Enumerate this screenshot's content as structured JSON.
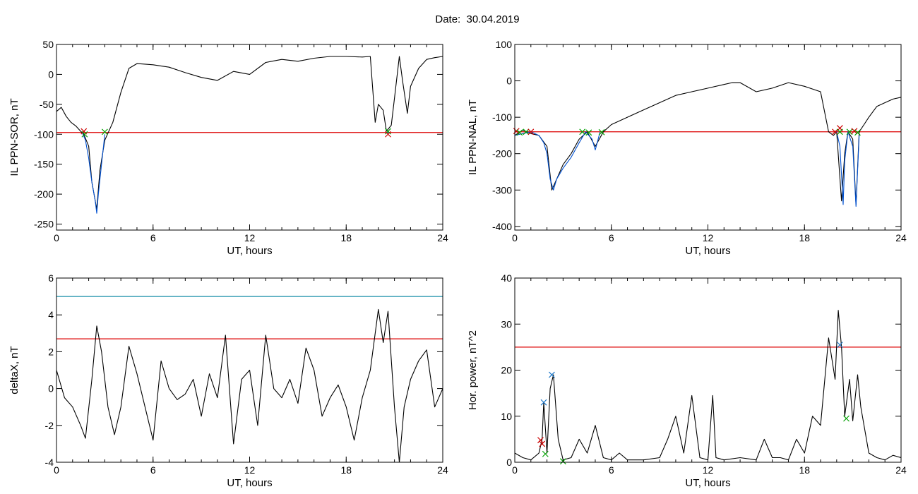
{
  "page": {
    "title": "Date:  30.04.2019"
  },
  "colors": {
    "trace": "#000000",
    "highlight": "#0050d0",
    "threshold_red": "#dd0000",
    "threshold_cyan": "#1a8fa8",
    "marker_red": "#cc0000",
    "marker_green": "#00a000",
    "marker_blue": "#1f78c8"
  },
  "chart_data": [
    {
      "type": "line",
      "xlabel": "UT, hours",
      "ylabel": "IL PPN-SOR, nT",
      "xlim": [
        0,
        24
      ],
      "ylim": [
        -260,
        50
      ],
      "xticks": [
        0,
        6,
        12,
        18,
        24
      ],
      "yticks": [
        50,
        0,
        -50,
        -100,
        -150,
        -200,
        -250
      ],
      "thresholds": [
        {
          "value": -97,
          "color": "red"
        }
      ],
      "series": [
        {
          "color": "black",
          "x": [
            0,
            0.3,
            0.6,
            0.9,
            1.2,
            1.5,
            1.7,
            2.0,
            2.2,
            2.5,
            2.7,
            3.0,
            3.5,
            4.0,
            4.5,
            5.0,
            6.0,
            7.0,
            8.0,
            9.0,
            10.0,
            11.0,
            12.0,
            13.0,
            14.0,
            15.0,
            16.0,
            17.0,
            18.0,
            19.0,
            19.5,
            19.8,
            20.0,
            20.3,
            20.5,
            20.8,
            21.0,
            21.3,
            21.5,
            21.8,
            22.0,
            22.5,
            23.0,
            23.5,
            24
          ],
          "y": [
            -62,
            -55,
            -70,
            -80,
            -86,
            -95,
            -100,
            -120,
            -180,
            -225,
            -160,
            -110,
            -80,
            -30,
            10,
            18,
            16,
            12,
            3,
            -5,
            -10,
            5,
            0,
            20,
            25,
            22,
            27,
            30,
            30,
            29,
            30,
            -80,
            -50,
            -60,
            -95,
            -85,
            -40,
            30,
            -10,
            -65,
            -20,
            10,
            25,
            28,
            30
          ]
        },
        {
          "color": "blue",
          "x": [
            1.6,
            1.8,
            2.0,
            2.2,
            2.4,
            2.5,
            2.6,
            2.8,
            3.0
          ],
          "y": [
            -97,
            -110,
            -140,
            -180,
            -210,
            -232,
            -200,
            -150,
            -100
          ]
        },
        {
          "color": "blue",
          "x": [
            20.5,
            20.7
          ],
          "y": [
            -97,
            -97
          ]
        }
      ],
      "markers": [
        {
          "x": 1.7,
          "y": -95,
          "color": "red"
        },
        {
          "x": 1.75,
          "y": -100,
          "color": "green"
        },
        {
          "x": 3.0,
          "y": -96,
          "color": "green"
        },
        {
          "x": 20.6,
          "y": -95,
          "color": "green"
        },
        {
          "x": 20.6,
          "y": -100,
          "color": "red"
        }
      ]
    },
    {
      "type": "line",
      "xlabel": "UT, hours",
      "ylabel": "IL PPN-NAL, nT",
      "xlim": [
        0,
        24
      ],
      "ylim": [
        -410,
        100
      ],
      "xticks": [
        0,
        6,
        12,
        18,
        24
      ],
      "yticks": [
        100,
        0,
        -100,
        -200,
        -300,
        -400
      ],
      "thresholds": [
        {
          "value": -140,
          "color": "red"
        }
      ],
      "series": [
        {
          "color": "black",
          "x": [
            0,
            0.5,
            1.0,
            1.5,
            2.0,
            2.3,
            2.6,
            3.0,
            3.5,
            4.0,
            4.5,
            5.0,
            5.5,
            6.0,
            7.0,
            8.0,
            9.0,
            10.0,
            11.0,
            12.0,
            13.0,
            13.5,
            14.0,
            15.0,
            16.0,
            17.0,
            18.0,
            19.0,
            19.5,
            19.8,
            20.0,
            20.3,
            20.5,
            20.7,
            21.0,
            21.2,
            21.4,
            21.7,
            22.0,
            22.5,
            23.0,
            23.5,
            24
          ],
          "y": [
            -150,
            -135,
            -145,
            -150,
            -180,
            -300,
            -270,
            -230,
            -200,
            -160,
            -140,
            -180,
            -140,
            -120,
            -100,
            -80,
            -60,
            -40,
            -30,
            -20,
            -10,
            -5,
            -5,
            -30,
            -20,
            -5,
            -15,
            -30,
            -140,
            -150,
            -140,
            -330,
            -200,
            -140,
            -160,
            -340,
            -140,
            -120,
            -100,
            -70,
            -60,
            -50,
            -45
          ]
        },
        {
          "color": "blue",
          "x": [
            0,
            0.5,
            1.0,
            1.5,
            1.8,
            2.0,
            2.2,
            2.4,
            2.6,
            3.0,
            3.5,
            4.0,
            4.4,
            4.8,
            5.0,
            5.3
          ],
          "y": [
            -150,
            -145,
            -140,
            -150,
            -170,
            -200,
            -270,
            -300,
            -270,
            -240,
            -210,
            -170,
            -140,
            -160,
            -190,
            -140
          ]
        },
        {
          "color": "blue",
          "x": [
            20.0,
            20.2,
            20.4,
            20.5,
            20.7,
            21.0,
            21.2,
            21.4
          ],
          "y": [
            -140,
            -180,
            -340,
            -220,
            -140,
            -180,
            -345,
            -150
          ]
        }
      ],
      "markers": [
        {
          "x": 0.1,
          "y": -138,
          "color": "red"
        },
        {
          "x": 0.3,
          "y": -142,
          "color": "green"
        },
        {
          "x": 0.7,
          "y": -140,
          "color": "green"
        },
        {
          "x": 1.0,
          "y": -140,
          "color": "red"
        },
        {
          "x": 4.2,
          "y": -140,
          "color": "green"
        },
        {
          "x": 4.6,
          "y": -142,
          "color": "green"
        },
        {
          "x": 5.4,
          "y": -141,
          "color": "green"
        },
        {
          "x": 19.9,
          "y": -140,
          "color": "red"
        },
        {
          "x": 20.2,
          "y": -130,
          "color": "red"
        },
        {
          "x": 20.2,
          "y": -140,
          "color": "green"
        },
        {
          "x": 20.8,
          "y": -140,
          "color": "green"
        },
        {
          "x": 21.1,
          "y": -138,
          "color": "red"
        },
        {
          "x": 21.3,
          "y": -142,
          "color": "green"
        }
      ]
    },
    {
      "type": "line",
      "xlabel": "UT, hours",
      "ylabel": "deltaX, nT",
      "xlim": [
        0,
        24
      ],
      "ylim": [
        -4,
        6
      ],
      "xticks": [
        0,
        6,
        12,
        18,
        24
      ],
      "yticks": [
        6,
        4,
        2,
        0,
        -2,
        -4
      ],
      "thresholds": [
        {
          "value": 5.0,
          "color": "cyan"
        },
        {
          "value": 2.7,
          "color": "red"
        }
      ],
      "series": [
        {
          "color": "black",
          "x": [
            0,
            0.5,
            1.0,
            1.5,
            1.8,
            2.2,
            2.5,
            2.8,
            3.2,
            3.6,
            4.0,
            4.5,
            5.0,
            5.5,
            6.0,
            6.5,
            7.0,
            7.5,
            8.0,
            8.5,
            9.0,
            9.5,
            10.0,
            10.5,
            11.0,
            11.5,
            12.0,
            12.5,
            13.0,
            13.5,
            14.0,
            14.5,
            15.0,
            15.5,
            16.0,
            16.5,
            17.0,
            17.5,
            18.0,
            18.5,
            19.0,
            19.5,
            20.0,
            20.3,
            20.6,
            21.0,
            21.3,
            21.6,
            22.0,
            22.5,
            23.0,
            23.5,
            24
          ],
          "y": [
            1.0,
            -0.5,
            -1.0,
            -2.0,
            -2.7,
            0.5,
            3.4,
            2.0,
            -1.0,
            -2.5,
            -1.0,
            2.3,
            0.8,
            -1.0,
            -2.8,
            1.5,
            0.0,
            -0.6,
            -0.3,
            0.5,
            -1.5,
            0.8,
            -0.5,
            2.9,
            -3.0,
            0.5,
            1.0,
            -2.0,
            2.9,
            0.0,
            -0.5,
            0.5,
            -0.8,
            2.2,
            1.0,
            -1.5,
            -0.5,
            0.2,
            -1.0,
            -2.8,
            -0.5,
            1.0,
            4.3,
            2.5,
            4.2,
            -1.0,
            -4.0,
            -1.0,
            0.5,
            1.5,
            2.1,
            -1.0,
            0.0
          ]
        }
      ],
      "markers": []
    },
    {
      "type": "line",
      "xlabel": "UT, hours",
      "ylabel": "Hor. power, nT^2",
      "xlim": [
        0,
        24
      ],
      "ylim": [
        0,
        40
      ],
      "xticks": [
        0,
        6,
        12,
        18,
        24
      ],
      "yticks": [
        40,
        30,
        20,
        10,
        0
      ],
      "thresholds": [
        {
          "value": 25,
          "color": "red"
        }
      ],
      "series": [
        {
          "color": "black",
          "x": [
            0,
            0.5,
            1.0,
            1.5,
            1.7,
            1.8,
            2.0,
            2.2,
            2.4,
            2.7,
            3.0,
            3.5,
            4.0,
            4.5,
            5.0,
            5.5,
            6.0,
            6.5,
            7.0,
            8.0,
            9.0,
            9.5,
            10.0,
            10.5,
            11.0,
            11.5,
            12.0,
            12.3,
            12.5,
            13.0,
            14.0,
            15.0,
            15.5,
            16.0,
            16.5,
            17.0,
            17.5,
            18.0,
            18.5,
            19.0,
            19.5,
            19.9,
            20.1,
            20.3,
            20.5,
            20.8,
            21.0,
            21.3,
            21.5,
            22.0,
            22.5,
            23.0,
            23.5,
            24
          ],
          "y": [
            2.0,
            1.0,
            0.5,
            2.0,
            5.0,
            13.0,
            2.0,
            16.0,
            19.0,
            5.0,
            0.5,
            1.0,
            5.0,
            2.0,
            8.0,
            1.0,
            0.5,
            2.0,
            0.5,
            0.5,
            1.0,
            5.0,
            10.0,
            2.0,
            14.5,
            1.0,
            0.5,
            14.5,
            1.0,
            0.5,
            1.0,
            0.5,
            5.0,
            1.0,
            1.0,
            0.5,
            5.0,
            2.0,
            10.0,
            8.0,
            27.0,
            18.0,
            33.0,
            25.0,
            10.0,
            18.0,
            9.0,
            19.0,
            12.0,
            2.0,
            1.0,
            0.5,
            1.5,
            1.0
          ]
        }
      ],
      "markers": [
        {
          "x": 1.6,
          "y": 4.8,
          "color": "red"
        },
        {
          "x": 1.7,
          "y": 4.0,
          "color": "red"
        },
        {
          "x": 1.8,
          "y": 13.0,
          "color": "blue"
        },
        {
          "x": 1.9,
          "y": 1.8,
          "color": "green"
        },
        {
          "x": 2.3,
          "y": 19.0,
          "color": "blue"
        },
        {
          "x": 3.0,
          "y": 0.2,
          "color": "green"
        },
        {
          "x": 20.2,
          "y": 25.5,
          "color": "blue"
        },
        {
          "x": 20.6,
          "y": 9.5,
          "color": "green"
        }
      ]
    }
  ]
}
